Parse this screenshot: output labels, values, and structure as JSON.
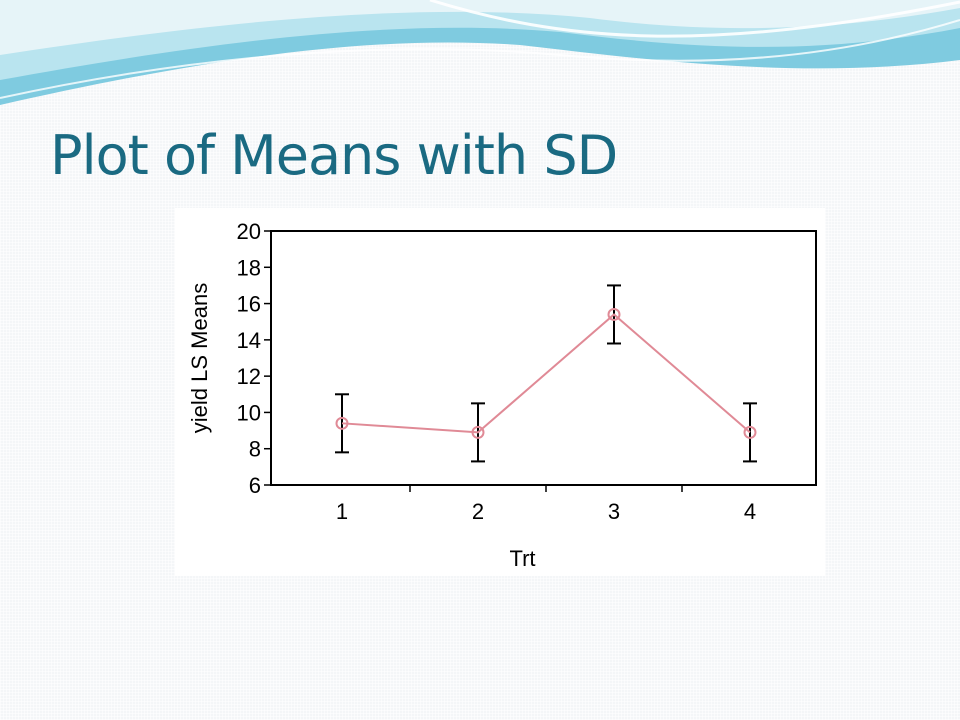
{
  "slide": {
    "title": "Plot of Means with SD",
    "title_color": "#1a6a82",
    "header_colors": [
      "#7fcbe0",
      "#b9e4ef",
      "#e6f4f8"
    ]
  },
  "chart_data": {
    "type": "line",
    "xlabel": "Trt",
    "ylabel": "yield LS Means",
    "categories": [
      "1",
      "2",
      "3",
      "4"
    ],
    "ylim": [
      6,
      20
    ],
    "yticks": [
      6,
      8,
      10,
      12,
      14,
      16,
      18,
      20
    ],
    "series": [
      {
        "values": [
          9.4,
          8.9,
          15.4,
          8.9
        ],
        "error_low": [
          7.8,
          7.3,
          13.8,
          7.3
        ],
        "error_high": [
          11.0,
          10.5,
          17.0,
          10.5
        ],
        "color": "#e08a96",
        "marker": "open-circle"
      }
    ],
    "error_bar_color": "#000000",
    "grid": false
  }
}
